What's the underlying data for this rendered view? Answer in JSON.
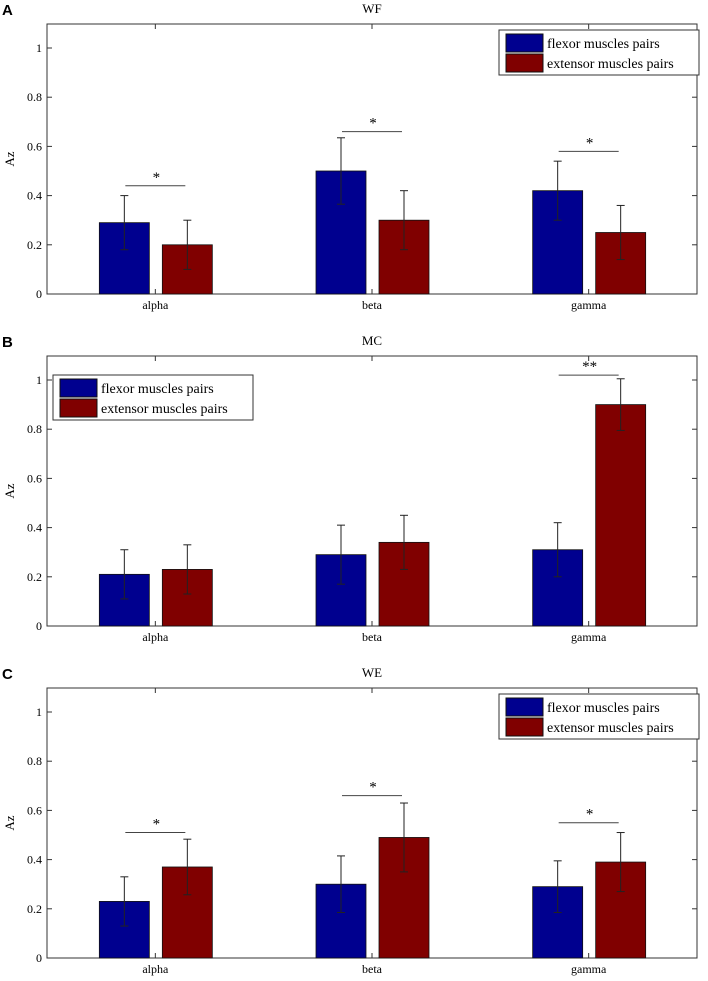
{
  "chart_data": [
    {
      "type": "bar",
      "panel_label": "A",
      "title": "WF",
      "ylabel": "Az",
      "xlabel": "",
      "ylim": [
        0,
        1.1
      ],
      "yticks": [
        0,
        0.2,
        0.4,
        0.6,
        0.8,
        1
      ],
      "ytick_labels": [
        "0",
        "0.2",
        "0.4",
        "0.6",
        "0.8",
        "1"
      ],
      "categories": [
        "alpha",
        "beta",
        "gamma"
      ],
      "legend": "top-right",
      "series": [
        {
          "name": "flexor muscles pairs",
          "color": "#00008f",
          "values": [
            0.29,
            0.5,
            0.42
          ],
          "errors": [
            0.11,
            0.135,
            0.12
          ]
        },
        {
          "name": "extensor muscles pairs",
          "color": "#800000",
          "values": [
            0.2,
            0.3,
            0.25
          ],
          "errors": [
            0.1,
            0.12,
            0.11
          ]
        }
      ],
      "significance": [
        {
          "category": "alpha",
          "level": 0.44,
          "label": "*"
        },
        {
          "category": "beta",
          "level": 0.66,
          "label": "*"
        },
        {
          "category": "gamma",
          "level": 0.58,
          "label": "*"
        }
      ]
    },
    {
      "type": "bar",
      "panel_label": "B",
      "title": "MC",
      "ylabel": "Az",
      "xlabel": "",
      "ylim": [
        0,
        1.1
      ],
      "yticks": [
        0,
        0.2,
        0.4,
        0.6,
        0.8,
        1
      ],
      "ytick_labels": [
        "0",
        "0.2",
        "0.4",
        "0.6",
        "0.8",
        "1"
      ],
      "categories": [
        "alpha",
        "beta",
        "gamma"
      ],
      "legend": "top-left",
      "series": [
        {
          "name": "flexor muscles pairs",
          "color": "#00008f",
          "values": [
            0.21,
            0.29,
            0.31
          ],
          "errors": [
            0.1,
            0.12,
            0.11
          ]
        },
        {
          "name": "extensor muscles pairs",
          "color": "#800000",
          "values": [
            0.23,
            0.34,
            0.9
          ],
          "errors": [
            0.1,
            0.11,
            0.105
          ]
        }
      ],
      "significance": [
        {
          "category": "gamma",
          "level": 1.02,
          "label": "**"
        }
      ]
    },
    {
      "type": "bar",
      "panel_label": "C",
      "title": "WE",
      "ylabel": "Az",
      "xlabel": "",
      "ylim": [
        0,
        1.1
      ],
      "yticks": [
        0,
        0.2,
        0.4,
        0.6,
        0.8,
        1
      ],
      "ytick_labels": [
        "0",
        "0.2",
        "0.4",
        "0.6",
        "0.8",
        "1"
      ],
      "categories": [
        "alpha",
        "beta",
        "gamma"
      ],
      "legend": "top-right",
      "series": [
        {
          "name": "flexor muscles pairs",
          "color": "#00008f",
          "values": [
            0.23,
            0.3,
            0.29
          ],
          "errors": [
            0.1,
            0.115,
            0.105
          ]
        },
        {
          "name": "extensor muscles pairs",
          "color": "#800000",
          "values": [
            0.37,
            0.49,
            0.39
          ],
          "errors": [
            0.113,
            0.14,
            0.12
          ]
        }
      ],
      "significance": [
        {
          "category": "alpha",
          "level": 0.51,
          "label": "*"
        },
        {
          "category": "beta",
          "level": 0.66,
          "label": "*"
        },
        {
          "category": "gamma",
          "level": 0.55,
          "label": "*"
        }
      ]
    }
  ]
}
